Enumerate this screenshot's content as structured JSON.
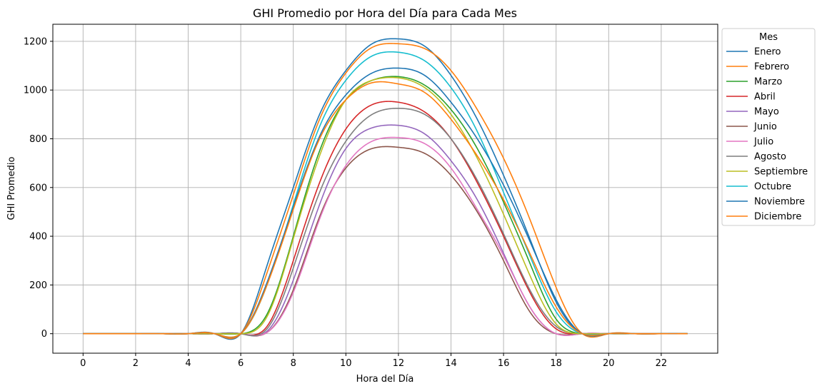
{
  "chart_data": {
    "type": "line",
    "title": "GHI Promedio por Hora del Día para Cada Mes",
    "xlabel": "Hora del Día",
    "ylabel": "GHI Promedio",
    "xlim": [
      -1.15,
      24.15
    ],
    "ylim": [
      -80,
      1270
    ],
    "xticks": [
      0,
      2,
      4,
      6,
      8,
      10,
      12,
      14,
      16,
      18,
      20,
      22
    ],
    "yticks": [
      0,
      200,
      400,
      600,
      800,
      1000,
      1200
    ],
    "grid": true,
    "legend_title": "Mes",
    "legend_position": "outside-right",
    "x": [
      0,
      1,
      2,
      3,
      4,
      5,
      6,
      7,
      8,
      9,
      10,
      11,
      12,
      13,
      14,
      15,
      16,
      17,
      18,
      19,
      20,
      21,
      22,
      23
    ],
    "series": [
      {
        "name": "Enero",
        "color": "#1f77b4",
        "values": [
          0,
          0,
          0,
          0,
          0,
          0,
          0,
          280,
          600,
          900,
          1080,
          1190,
          1210,
          1180,
          1060,
          880,
          650,
          390,
          130,
          0,
          0,
          0,
          0,
          0
        ]
      },
      {
        "name": "Febrero",
        "color": "#ff7f0e",
        "values": [
          0,
          0,
          0,
          0,
          0,
          0,
          0,
          250,
          570,
          880,
          1070,
          1175,
          1190,
          1170,
          1080,
          920,
          720,
          470,
          190,
          0,
          0,
          0,
          0,
          0
        ]
      },
      {
        "name": "Marzo",
        "color": "#2ca02c",
        "values": [
          0,
          0,
          0,
          0,
          0,
          0,
          0,
          80,
          400,
          750,
          960,
          1040,
          1055,
          1020,
          920,
          760,
          540,
          290,
          60,
          0,
          0,
          0,
          0,
          0
        ]
      },
      {
        "name": "Abril",
        "color": "#d62728",
        "values": [
          0,
          0,
          0,
          0,
          0,
          0,
          0,
          30,
          300,
          620,
          840,
          940,
          950,
          910,
          800,
          620,
          400,
          170,
          20,
          0,
          0,
          0,
          0,
          0
        ]
      },
      {
        "name": "Mayo",
        "color": "#9467bd",
        "values": [
          0,
          0,
          0,
          0,
          0,
          0,
          0,
          10,
          220,
          530,
          760,
          845,
          855,
          820,
          710,
          550,
          330,
          110,
          0,
          0,
          0,
          0,
          0,
          0
        ]
      },
      {
        "name": "Junio",
        "color": "#8c564b",
        "values": [
          0,
          0,
          0,
          0,
          0,
          0,
          0,
          5,
          180,
          480,
          680,
          760,
          765,
          740,
          650,
          500,
          300,
          90,
          0,
          0,
          0,
          0,
          0,
          0
        ]
      },
      {
        "name": "Julio",
        "color": "#e377c2",
        "values": [
          0,
          0,
          0,
          0,
          0,
          0,
          0,
          5,
          170,
          470,
          690,
          790,
          805,
          780,
          680,
          510,
          320,
          110,
          0,
          0,
          0,
          0,
          0,
          0
        ]
      },
      {
        "name": "Agosto",
        "color": "#7f7f7f",
        "values": [
          0,
          0,
          0,
          0,
          0,
          0,
          0,
          20,
          270,
          580,
          790,
          900,
          925,
          900,
          800,
          630,
          410,
          180,
          30,
          0,
          0,
          0,
          0,
          0
        ]
      },
      {
        "name": "Septiembre",
        "color": "#bcbd22",
        "values": [
          0,
          0,
          0,
          0,
          0,
          0,
          0,
          70,
          390,
          730,
          960,
          1040,
          1050,
          1010,
          900,
          720,
          490,
          240,
          40,
          0,
          0,
          0,
          0,
          0
        ]
      },
      {
        "name": "Octubre",
        "color": "#17becf",
        "values": [
          0,
          0,
          0,
          0,
          0,
          0,
          0,
          200,
          530,
          850,
          1040,
          1140,
          1155,
          1120,
          1010,
          830,
          580,
          320,
          90,
          0,
          0,
          0,
          0,
          0
        ]
      },
      {
        "name": "Noviembre",
        "color": "#1f77b4",
        "values": [
          0,
          0,
          0,
          0,
          0,
          0,
          0,
          210,
          520,
          810,
          980,
          1070,
          1090,
          1060,
          950,
          800,
          610,
          380,
          140,
          0,
          0,
          0,
          0,
          0
        ]
      },
      {
        "name": "Diciembre",
        "color": "#ff7f0e",
        "values": [
          0,
          0,
          0,
          0,
          0,
          0,
          0,
          200,
          510,
          800,
          960,
          1030,
          1025,
          990,
          880,
          730,
          550,
          330,
          110,
          0,
          0,
          0,
          0,
          0
        ]
      }
    ]
  }
}
